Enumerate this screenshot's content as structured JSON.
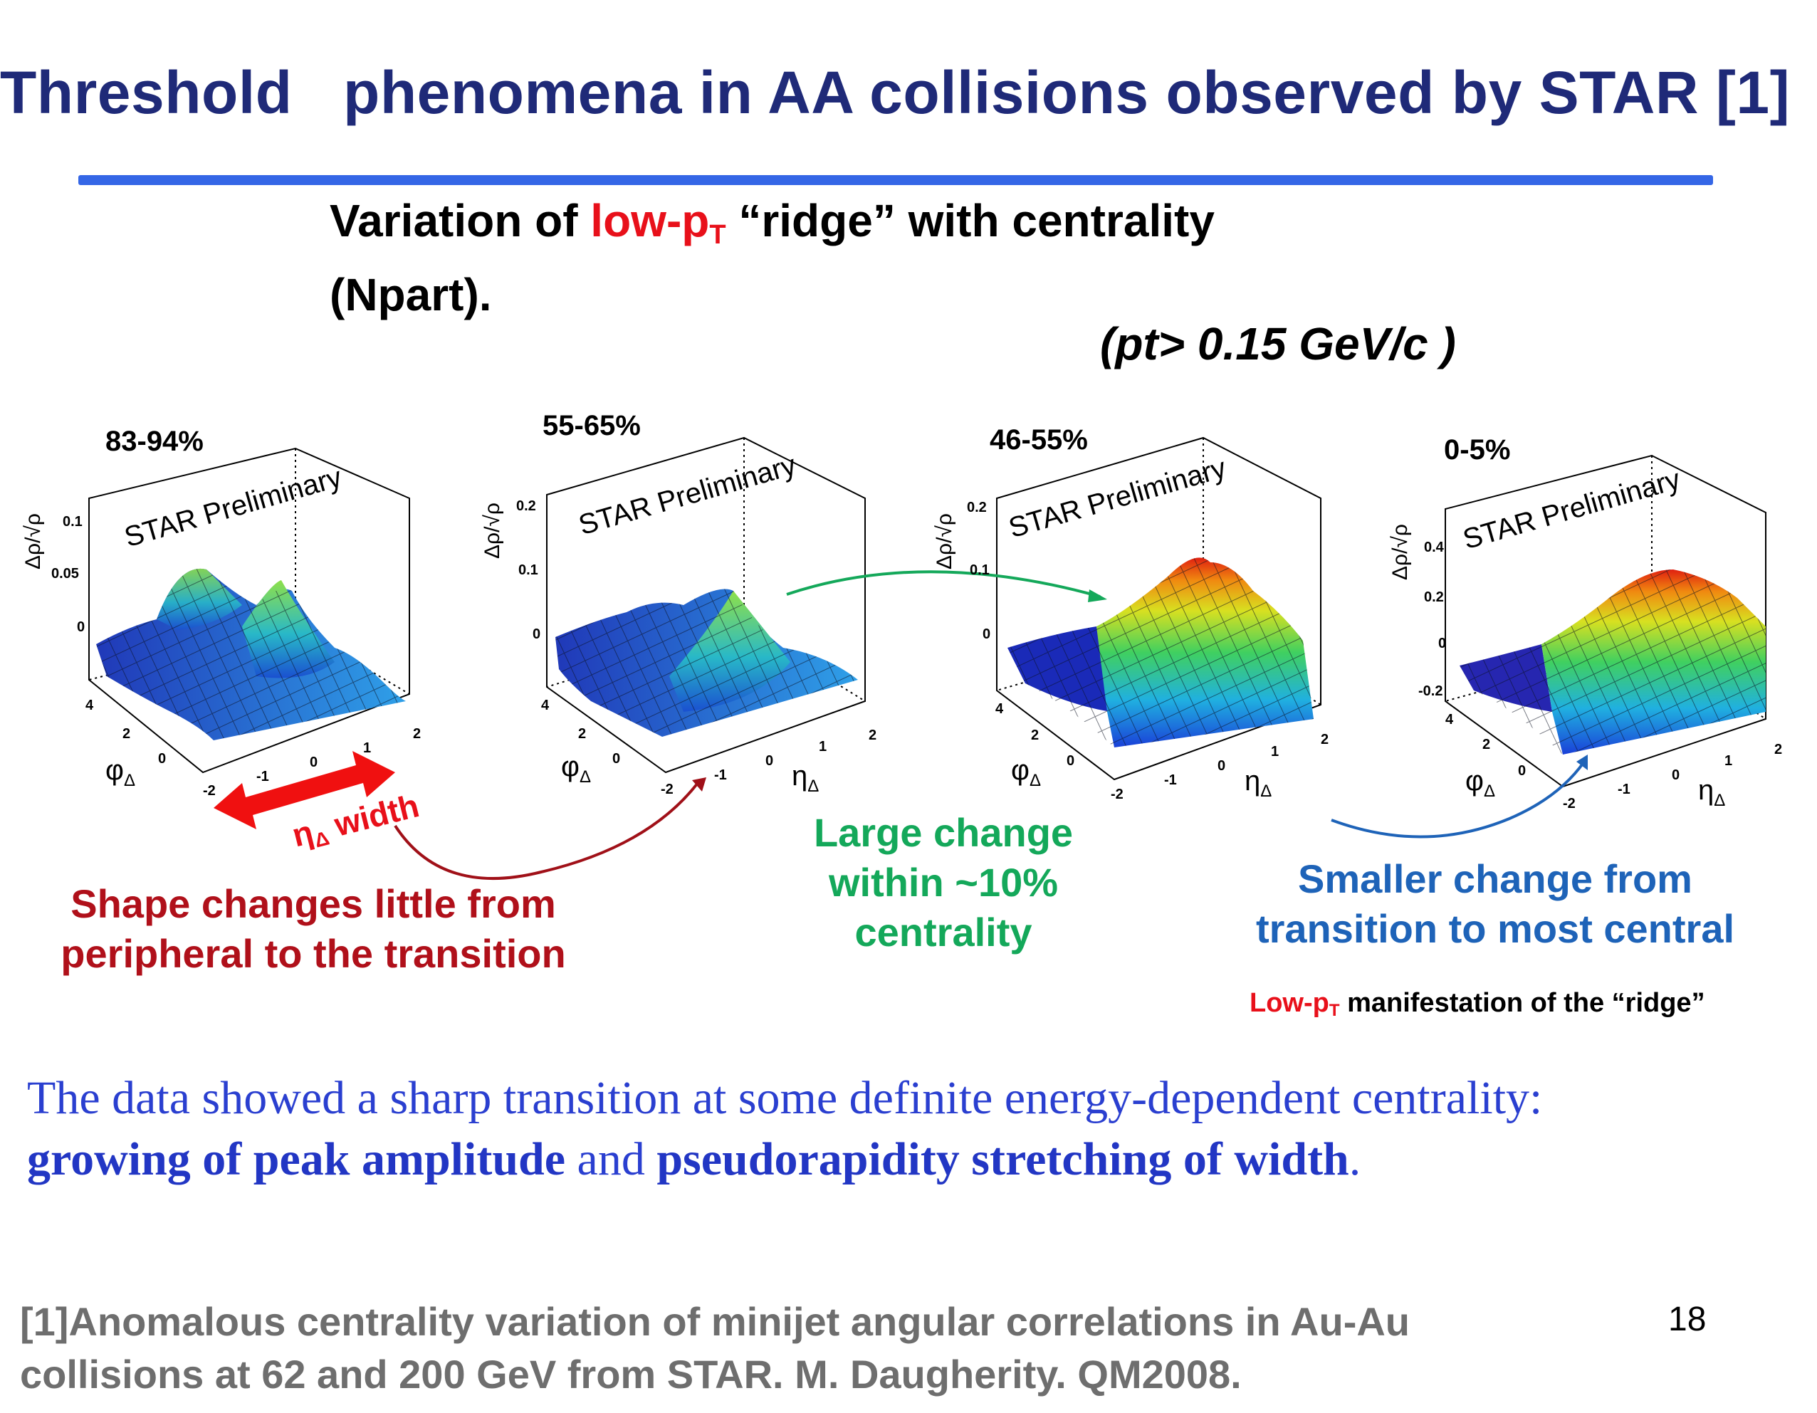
{
  "slide": {
    "title": "Threshold   phenomena in AA collisions observed by STAR [1]",
    "subtitle_part1": "Variation of ",
    "subtitle_red": "low-p",
    "subtitle_red_sub": "T",
    "subtitle_part2": " “ridge” with centrality",
    "subtitle_line2": "(Npart).",
    "condition": "(pt> 0.15 GeV/c )",
    "page_number": "18"
  },
  "panels": [
    {
      "label": "83-94%",
      "watermark": "STAR Preliminary",
      "z_ticks": [
        "0.1",
        "0.05",
        "0"
      ]
    },
    {
      "label": "55-65%",
      "watermark": "STAR Preliminary",
      "z_ticks": [
        "0.2",
        "0.1",
        "0"
      ]
    },
    {
      "label": "46-55%",
      "watermark": "STAR Preliminary",
      "z_ticks": [
        "0.2",
        "0.1",
        "0"
      ]
    },
    {
      "label": "0-5%",
      "watermark": "STAR Preliminary",
      "z_ticks": [
        "0.4",
        "0.2",
        "0",
        "-0.2"
      ]
    }
  ],
  "axes": {
    "z_label": "Δρ/√ρ",
    "phi_label": "φ",
    "phi_sub": "Δ",
    "eta_label": "η",
    "eta_sub": "Δ",
    "phi_ticks": [
      "4",
      "2",
      "0"
    ],
    "eta_ticks": [
      "-2",
      "-1",
      "0",
      "1",
      "2"
    ]
  },
  "annotations": {
    "eta_width_label": "η",
    "eta_width_sub": "Δ",
    "eta_width_word": " width",
    "red_line1": "Shape changes little from",
    "red_line2": "peripheral to the transition",
    "green_line1": "Large change",
    "green_line2": "within ~10%",
    "green_line3": "centrality",
    "blue_line1": "Smaller change from",
    "blue_line2": "transition to most central",
    "lowpt_red": "Low-p",
    "lowpt_red_sub": "T",
    "lowpt_rest": " manifestation of the “ridge”"
  },
  "conclusion": {
    "text1": "The data showed a sharp transition at  some definite energy-dependent centrality:",
    "bold1": "growing of peak amplitude",
    "text2": " and ",
    "bold2": "pseudorapidity stretching of width",
    "text3": "."
  },
  "reference": {
    "line1": "[1]Anomalous centrality variation of minijet angular correlations in Au-Au",
    "line2": "collisions at 62 and 200 GeV from STAR. M. Daugherity. QM2008."
  },
  "colors": {
    "title": "#1f2a78",
    "rule": "#3466e6",
    "red": "#e8101a",
    "green": "#14a85a",
    "blue": "#1e63b8"
  }
}
